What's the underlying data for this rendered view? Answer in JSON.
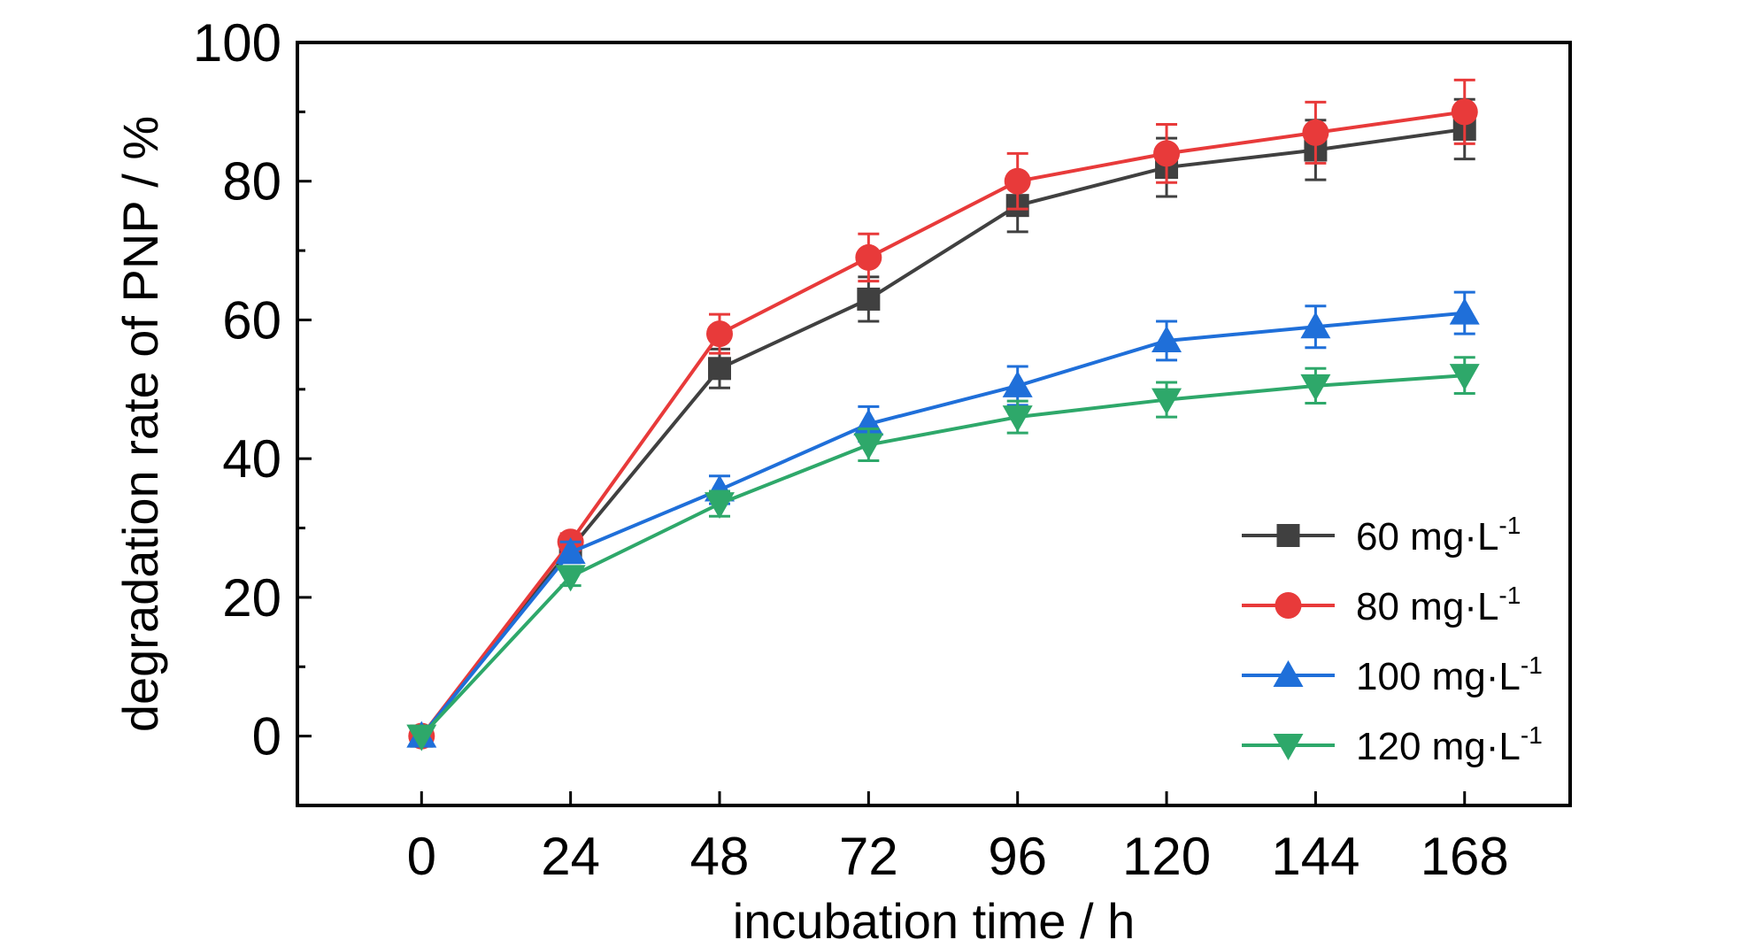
{
  "chart_data": {
    "type": "line",
    "xlabel": "incubation time / h",
    "ylabel": "degradation rate of PNP / %",
    "x": [
      0,
      24,
      48,
      72,
      96,
      120,
      144,
      168
    ],
    "x_ticks": [
      "0",
      "24",
      "48",
      "72",
      "96",
      "120",
      "144",
      "168"
    ],
    "xlim": [
      -20,
      185
    ],
    "ylim": [
      -10,
      100
    ],
    "y_ticks": [
      "0",
      "20",
      "40",
      "60",
      "80",
      "100"
    ],
    "grid": false,
    "legend_position": "bottom-right",
    "series": [
      {
        "name": "60 mg·L-1",
        "legend_base": "60 mg·L",
        "legend_sup": "-1",
        "color": "#404040",
        "marker": "square",
        "values": [
          0,
          27,
          53,
          63,
          76.5,
          82,
          84.5,
          87.5
        ],
        "errors": [
          0,
          1.5,
          2.8,
          3.2,
          3.8,
          4.2,
          4.3,
          4.3
        ]
      },
      {
        "name": "80 mg·L-1",
        "legend_base": "80 mg·L",
        "legend_sup": "-1",
        "color": "#e83a3a",
        "marker": "circle",
        "values": [
          0,
          28,
          58,
          69,
          80,
          84,
          87,
          90
        ],
        "errors": [
          0,
          1.2,
          2.8,
          3.4,
          4.0,
          4.2,
          4.4,
          4.6
        ]
      },
      {
        "name": "100 mg·L-1",
        "legend_base": "100 mg·L",
        "legend_sup": "-1",
        "color": "#1f6fd9",
        "marker": "triangle-up",
        "values": [
          0,
          26.5,
          35.5,
          45,
          50.5,
          57,
          59,
          61
        ],
        "errors": [
          0,
          1.5,
          2.0,
          2.5,
          2.8,
          2.8,
          3.0,
          3.0
        ]
      },
      {
        "name": "120 mg·L-1",
        "legend_base": "120 mg·L",
        "legend_sup": "-1",
        "color": "#2ea86a",
        "marker": "triangle-down",
        "values": [
          0,
          23,
          33.5,
          42,
          46,
          48.5,
          50.5,
          52
        ],
        "errors": [
          0,
          1.3,
          1.8,
          2.3,
          2.3,
          2.5,
          2.5,
          2.6
        ]
      }
    ]
  }
}
